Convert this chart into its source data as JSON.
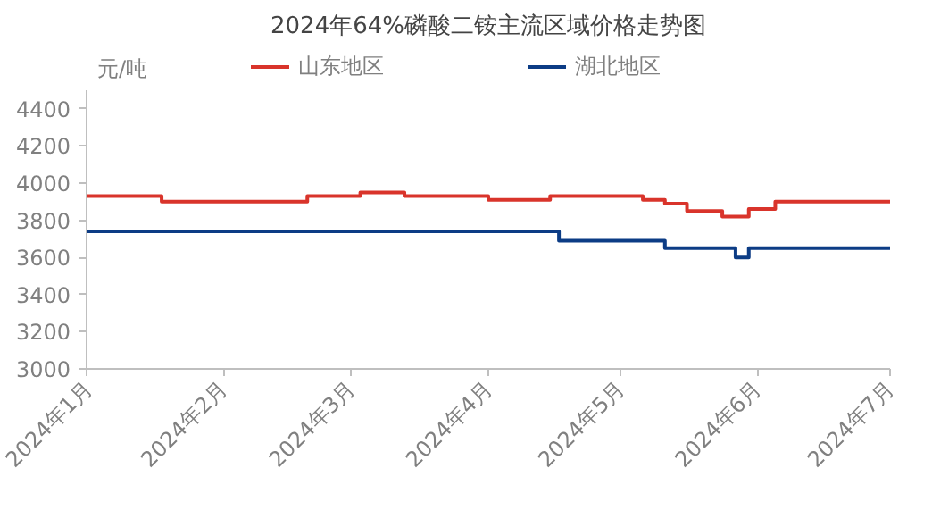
{
  "chart_data": {
    "type": "step",
    "title": "2024年64%磷酸二铵主流区域价格走势图",
    "ylabel": "元/吨",
    "xlim": [
      "2024-01-01",
      "2024-07-01"
    ],
    "xticks": [
      {
        "value": "2024-01-01",
        "label": "2024年1月"
      },
      {
        "value": "2024-02-01",
        "label": "2024年2月"
      },
      {
        "value": "2024-03-01",
        "label": "2024年3月"
      },
      {
        "value": "2024-04-01",
        "label": "2024年4月"
      },
      {
        "value": "2024-05-01",
        "label": "2024年5月"
      },
      {
        "value": "2024-06-01",
        "label": "2024年6月"
      },
      {
        "value": "2024-07-01",
        "label": "2024年7月"
      }
    ],
    "ylim": [
      3000,
      4500
    ],
    "yticks": [
      3000,
      3200,
      3400,
      3600,
      3800,
      4000,
      4200,
      4400
    ],
    "grid": false,
    "legend": "top",
    "series": [
      {
        "name": "山东地区",
        "color": "#d9342b",
        "x": [
          "2024-01-01",
          "2024-01-18",
          "2024-02-20",
          "2024-03-03",
          "2024-03-13",
          "2024-04-01",
          "2024-04-15",
          "2024-05-06",
          "2024-05-11",
          "2024-05-16",
          "2024-05-24",
          "2024-05-30",
          "2024-06-05",
          "2024-07-01"
        ],
        "values": [
          3930,
          3900,
          3930,
          3950,
          3930,
          3910,
          3930,
          3910,
          3890,
          3850,
          3820,
          3860,
          3900,
          3900
        ]
      },
      {
        "name": "湖北地区",
        "color": "#0c3c85",
        "x": [
          "2024-01-01",
          "2024-04-17",
          "2024-05-11",
          "2024-05-27",
          "2024-05-30",
          "2024-07-01"
        ],
        "values": [
          3740,
          3690,
          3650,
          3600,
          3650,
          3650
        ]
      }
    ]
  }
}
